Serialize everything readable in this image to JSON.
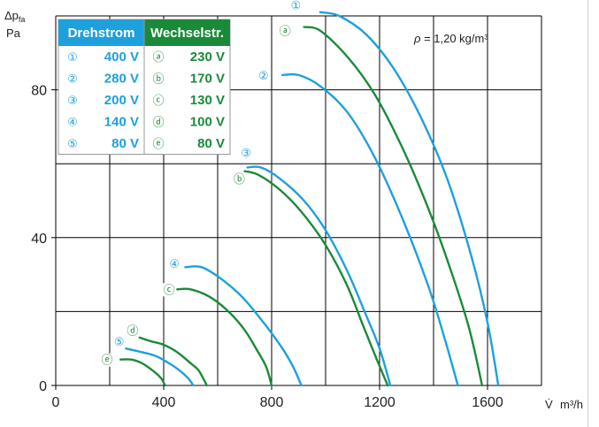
{
  "colors": {
    "drehstrom": "#1ea0dc",
    "wechselstrom": "#1a8a3a",
    "grid": "#000000",
    "table_border": "#999999"
  },
  "density_note": {
    "prefix": "ρ",
    "text": " = 1,20 kg/m³"
  },
  "legend_table": {
    "headers": [
      "Drehstrom",
      "Wechselstr."
    ],
    "rows": [
      {
        "d_sym": "①",
        "d_val": "400 V",
        "w_sym": "ⓐ",
        "w_val": "230 V"
      },
      {
        "d_sym": "②",
        "d_val": "280 V",
        "w_sym": "ⓑ",
        "w_val": "170 V"
      },
      {
        "d_sym": "③",
        "d_val": "200 V",
        "w_sym": "ⓒ",
        "w_val": "130 V"
      },
      {
        "d_sym": "④",
        "d_val": "140 V",
        "w_sym": "ⓓ",
        "w_val": "100 V"
      },
      {
        "d_sym": "⑤",
        "d_val": "80 V",
        "w_sym": "ⓔ",
        "w_val": "80 V"
      }
    ]
  },
  "chart_data": {
    "type": "line",
    "xlabel_symbol": "V̇",
    "xlabel_unit": "m³/h",
    "ylabel_symbol": "Δpfa",
    "ylabel_unit": "Pa",
    "xlim": [
      0,
      1800
    ],
    "ylim": [
      0,
      100
    ],
    "xticks": [
      0,
      400,
      800,
      1200,
      1600
    ],
    "yticks": [
      0,
      40,
      80
    ],
    "grid_x": [
      0,
      200,
      400,
      600,
      800,
      1000,
      1200,
      1400,
      1600,
      1800
    ],
    "grid_y": [
      0,
      20,
      40,
      60,
      80,
      100
    ],
    "series": [
      {
        "name": "①",
        "group": "drehstrom",
        "label": "①",
        "points": [
          [
            980,
            101
          ],
          [
            1050,
            100
          ],
          [
            1150,
            95
          ],
          [
            1250,
            86
          ],
          [
            1350,
            73
          ],
          [
            1450,
            56
          ],
          [
            1540,
            35
          ],
          [
            1600,
            17
          ],
          [
            1640,
            0
          ]
        ]
      },
      {
        "name": "②",
        "group": "drehstrom",
        "label": "②",
        "points": [
          [
            840,
            84
          ],
          [
            900,
            84
          ],
          [
            980,
            81
          ],
          [
            1080,
            74
          ],
          [
            1180,
            62
          ],
          [
            1280,
            46
          ],
          [
            1380,
            27
          ],
          [
            1440,
            13
          ],
          [
            1490,
            0
          ]
        ]
      },
      {
        "name": "③",
        "group": "drehstrom",
        "label": "③",
        "points": [
          [
            710,
            59
          ],
          [
            760,
            59
          ],
          [
            830,
            56
          ],
          [
            920,
            50
          ],
          [
            1000,
            42
          ],
          [
            1080,
            31
          ],
          [
            1150,
            19
          ],
          [
            1200,
            10
          ],
          [
            1240,
            0
          ]
        ]
      },
      {
        "name": "④",
        "group": "drehstrom",
        "label": "④",
        "points": [
          [
            480,
            32
          ],
          [
            540,
            32
          ],
          [
            610,
            29
          ],
          [
            690,
            24
          ],
          [
            770,
            17
          ],
          [
            840,
            10
          ],
          [
            880,
            5
          ],
          [
            910,
            0
          ]
        ]
      },
      {
        "name": "⑤",
        "group": "drehstrom",
        "label": "⑤",
        "points": [
          [
            260,
            10
          ],
          [
            320,
            9
          ],
          [
            370,
            8
          ],
          [
            420,
            6
          ],
          [
            460,
            4
          ],
          [
            490,
            2
          ],
          [
            510,
            0
          ]
        ]
      },
      {
        "name": "ⓐ",
        "group": "wechselstrom",
        "label": "ⓐ",
        "points": [
          [
            920,
            97
          ],
          [
            980,
            96
          ],
          [
            1080,
            89
          ],
          [
            1180,
            79
          ],
          [
            1280,
            65
          ],
          [
            1380,
            48
          ],
          [
            1460,
            32
          ],
          [
            1530,
            16
          ],
          [
            1580,
            0
          ]
        ]
      },
      {
        "name": "ⓑ",
        "group": "wechselstrom",
        "label": "ⓑ",
        "points": [
          [
            700,
            58
          ],
          [
            750,
            57
          ],
          [
            830,
            53
          ],
          [
            910,
            47
          ],
          [
            1000,
            38
          ],
          [
            1080,
            27
          ],
          [
            1140,
            16
          ],
          [
            1190,
            7
          ],
          [
            1230,
            0
          ]
        ]
      },
      {
        "name": "ⓒ",
        "group": "wechselstrom",
        "label": "ⓒ",
        "points": [
          [
            450,
            26
          ],
          [
            500,
            26
          ],
          [
            570,
            24
          ],
          [
            640,
            20
          ],
          [
            700,
            15
          ],
          [
            750,
            9
          ],
          [
            780,
            5
          ],
          [
            800,
            0
          ]
        ]
      },
      {
        "name": "ⓓ",
        "group": "wechselstrom",
        "label": "ⓓ",
        "points": [
          [
            310,
            13
          ],
          [
            350,
            12
          ],
          [
            400,
            11
          ],
          [
            450,
            9
          ],
          [
            500,
            6
          ],
          [
            530,
            4
          ],
          [
            560,
            0
          ]
        ]
      },
      {
        "name": "ⓔ",
        "group": "wechselstrom",
        "label": "ⓔ",
        "points": [
          [
            240,
            7
          ],
          [
            280,
            7
          ],
          [
            320,
            6
          ],
          [
            360,
            4
          ],
          [
            390,
            2
          ],
          [
            405,
            0
          ]
        ]
      }
    ],
    "label_positions": {
      "①": [
        890,
        103
      ],
      "②": [
        770,
        84
      ],
      "③": [
        705,
        63
      ],
      "④": [
        440,
        33
      ],
      "⑤": [
        235,
        12
      ],
      "ⓐ": [
        850,
        96
      ],
      "ⓑ": [
        680,
        56
      ],
      "ⓒ": [
        420,
        26
      ],
      "ⓓ": [
        285,
        15
      ],
      "ⓔ": [
        190,
        7
      ]
    }
  }
}
